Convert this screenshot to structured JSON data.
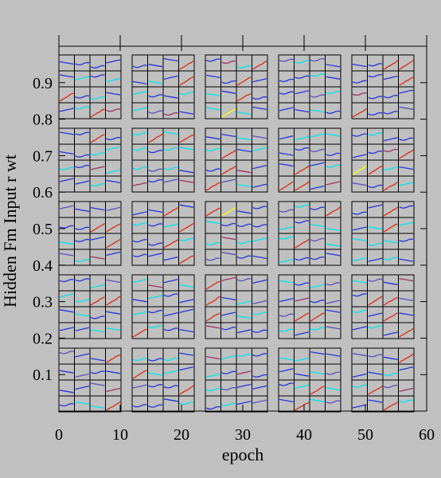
{
  "chart_data": {
    "type": "line",
    "title": "",
    "xlabel": "epoch",
    "ylabel": "Hidden Fm Input r wt",
    "xlim": [
      0,
      60
    ],
    "ylim": [
      0,
      1
    ],
    "x_ticks": [
      "0",
      "10",
      "20",
      "30",
      "40",
      "50",
      "60"
    ],
    "y_ticks": [
      "0.1",
      "0.2",
      "0.3",
      "0.4",
      "0.5",
      "0.6",
      "0.7",
      "0.8",
      "0.9"
    ],
    "grid": "5x5 panels, each a 4x4 grid of sub-cells with short weight trajectories",
    "panel_grid": {
      "rows": 5,
      "cols": 5,
      "sub_rows": 4,
      "sub_cols": 4
    },
    "colormap": [
      "#00e5ee",
      "#2233dd",
      "#5a4fc0",
      "#a03060",
      "#dd2a10",
      "#ffff00"
    ],
    "background": "#c0c0c0"
  }
}
